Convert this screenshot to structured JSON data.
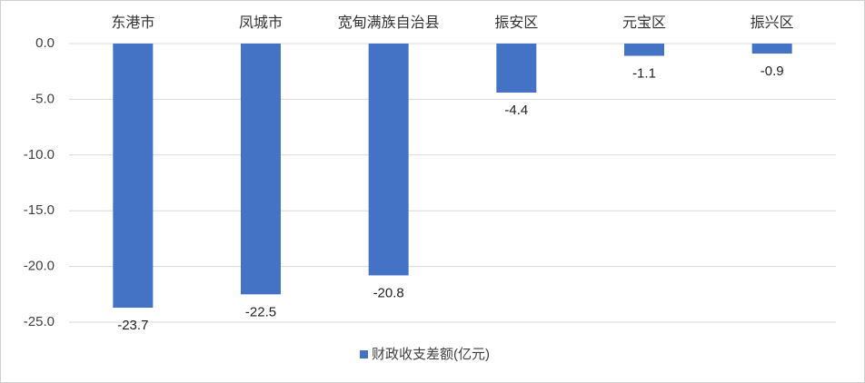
{
  "chart_data": {
    "type": "bar",
    "categories": [
      "东港市",
      "凤城市",
      "宽甸满族自治县",
      "振安区",
      "元宝区",
      "振兴区"
    ],
    "series": [
      {
        "name": "财政收支差额(亿元)",
        "color": "#4472c4",
        "values": [
          -23.7,
          -22.5,
          -20.8,
          -4.4,
          -1.1,
          -0.9
        ]
      }
    ],
    "ylim": [
      -25,
      0
    ],
    "yticks": [
      {
        "value": 0,
        "label": "0.0"
      },
      {
        "value": -5,
        "label": "-5.0"
      },
      {
        "value": -10,
        "label": "-10.0"
      },
      {
        "value": -15,
        "label": "-15.0"
      },
      {
        "value": -20,
        "label": "-20.0"
      },
      {
        "value": -25,
        "label": "-25.0"
      }
    ],
    "grid": true,
    "legend": "bottom"
  }
}
